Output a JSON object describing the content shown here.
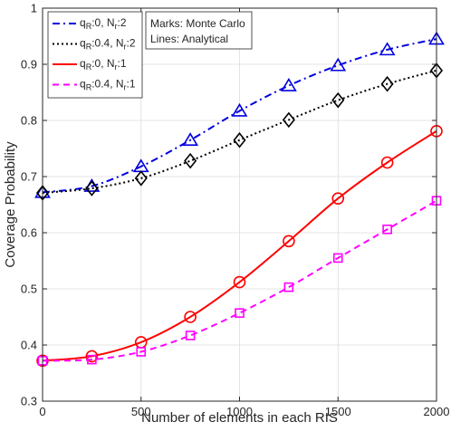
{
  "chart_data": {
    "type": "line",
    "title": "",
    "xlabel": "Number of elements in each RIS",
    "ylabel": "Coverage Probability",
    "xlim": [
      0,
      2000
    ],
    "ylim": [
      0.3,
      1
    ],
    "xticks": [
      "0",
      "500",
      "1000",
      "1500",
      "2000"
    ],
    "yticks": [
      "0.3",
      "0.4",
      "0.5",
      "0.6",
      "0.7",
      "0.8",
      "0.9",
      "1"
    ],
    "grid": true,
    "legend_position": "top-left",
    "x": [
      0,
      250,
      500,
      750,
      1000,
      1250,
      1500,
      1750,
      2000
    ],
    "series": [
      {
        "name_main": "q",
        "name_sub1": "R",
        "name_mid": ":0, N",
        "name_sub2": "r",
        "name_end": ":2",
        "color": "#0000e0",
        "line_style": "dash-dot",
        "marker": "triangle",
        "values": [
          0.672,
          0.683,
          0.718,
          0.765,
          0.817,
          0.862,
          0.898,
          0.926,
          0.945
        ]
      },
      {
        "name_main": "q",
        "name_sub1": "R",
        "name_mid": ":0.4, N",
        "name_sub2": "r",
        "name_end": ":2",
        "color": "#000000",
        "line_style": "dotted",
        "marker": "diamond",
        "values": [
          0.671,
          0.679,
          0.697,
          0.728,
          0.765,
          0.801,
          0.836,
          0.865,
          0.889
        ]
      },
      {
        "name_main": "q",
        "name_sub1": "R",
        "name_mid": ":0, N",
        "name_sub2": "r",
        "name_end": ":1",
        "color": "#ff0000",
        "line_style": "solid",
        "marker": "circle",
        "values": [
          0.372,
          0.38,
          0.405,
          0.45,
          0.512,
          0.585,
          0.661,
          0.725,
          0.781
        ]
      },
      {
        "name_main": "q",
        "name_sub1": "R",
        "name_mid": ":0.4, N",
        "name_sub2": "r",
        "name_end": ":1",
        "color": "#ff00ff",
        "line_style": "dashed",
        "marker": "square",
        "values": [
          0.372,
          0.374,
          0.388,
          0.417,
          0.457,
          0.503,
          0.555,
          0.606,
          0.657
        ]
      }
    ],
    "annotation_lines": [
      "Marks: Monte Carlo",
      "Lines: Analytical"
    ]
  }
}
